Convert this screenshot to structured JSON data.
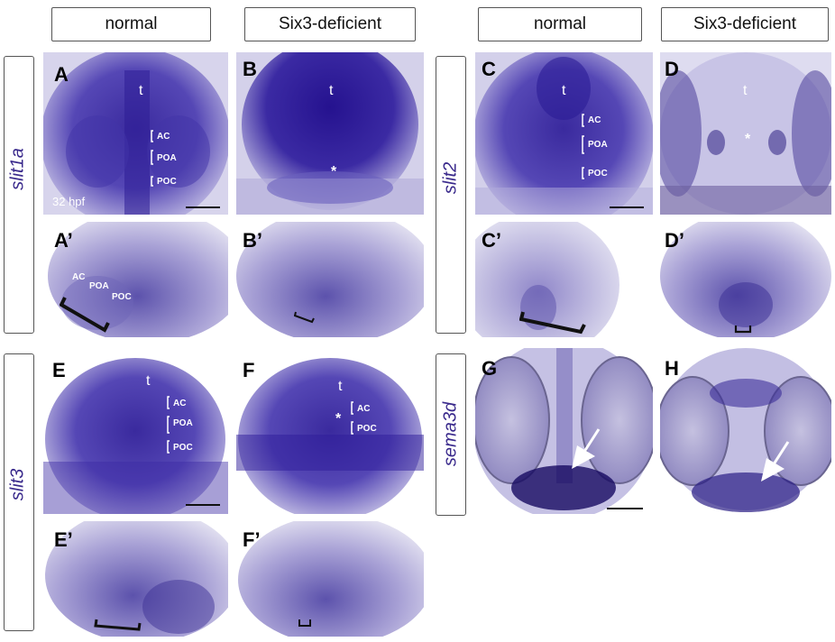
{
  "column_headers": {
    "col1": "normal",
    "col2": "Six3-deficient",
    "col3": "normal",
    "col4": "Six3-deficient"
  },
  "genes": {
    "slit1a": "slit1a",
    "slit2": "slit2",
    "slit3": "slit3",
    "sema3d": "sema3d"
  },
  "panels": {
    "A": "A",
    "B": "B",
    "C": "C",
    "D": "D",
    "A_prime": "A’",
    "B_prime": "B’",
    "C_prime": "C’",
    "D_prime": "D’",
    "E": "E",
    "F": "F",
    "G": "G",
    "H": "H",
    "E_prime": "E’",
    "F_prime": "F’"
  },
  "annotations": {
    "t": "t",
    "AC": "AC",
    "POA": "POA",
    "POC": "POC",
    "asterisk": "*",
    "stage": "32 hpf"
  },
  "colors": {
    "stain_dark": "#2a1a8a",
    "stain_mid": "#5a4cb5",
    "stain_light": "#c9c6e8",
    "gene_label": "#3a2a8c"
  }
}
